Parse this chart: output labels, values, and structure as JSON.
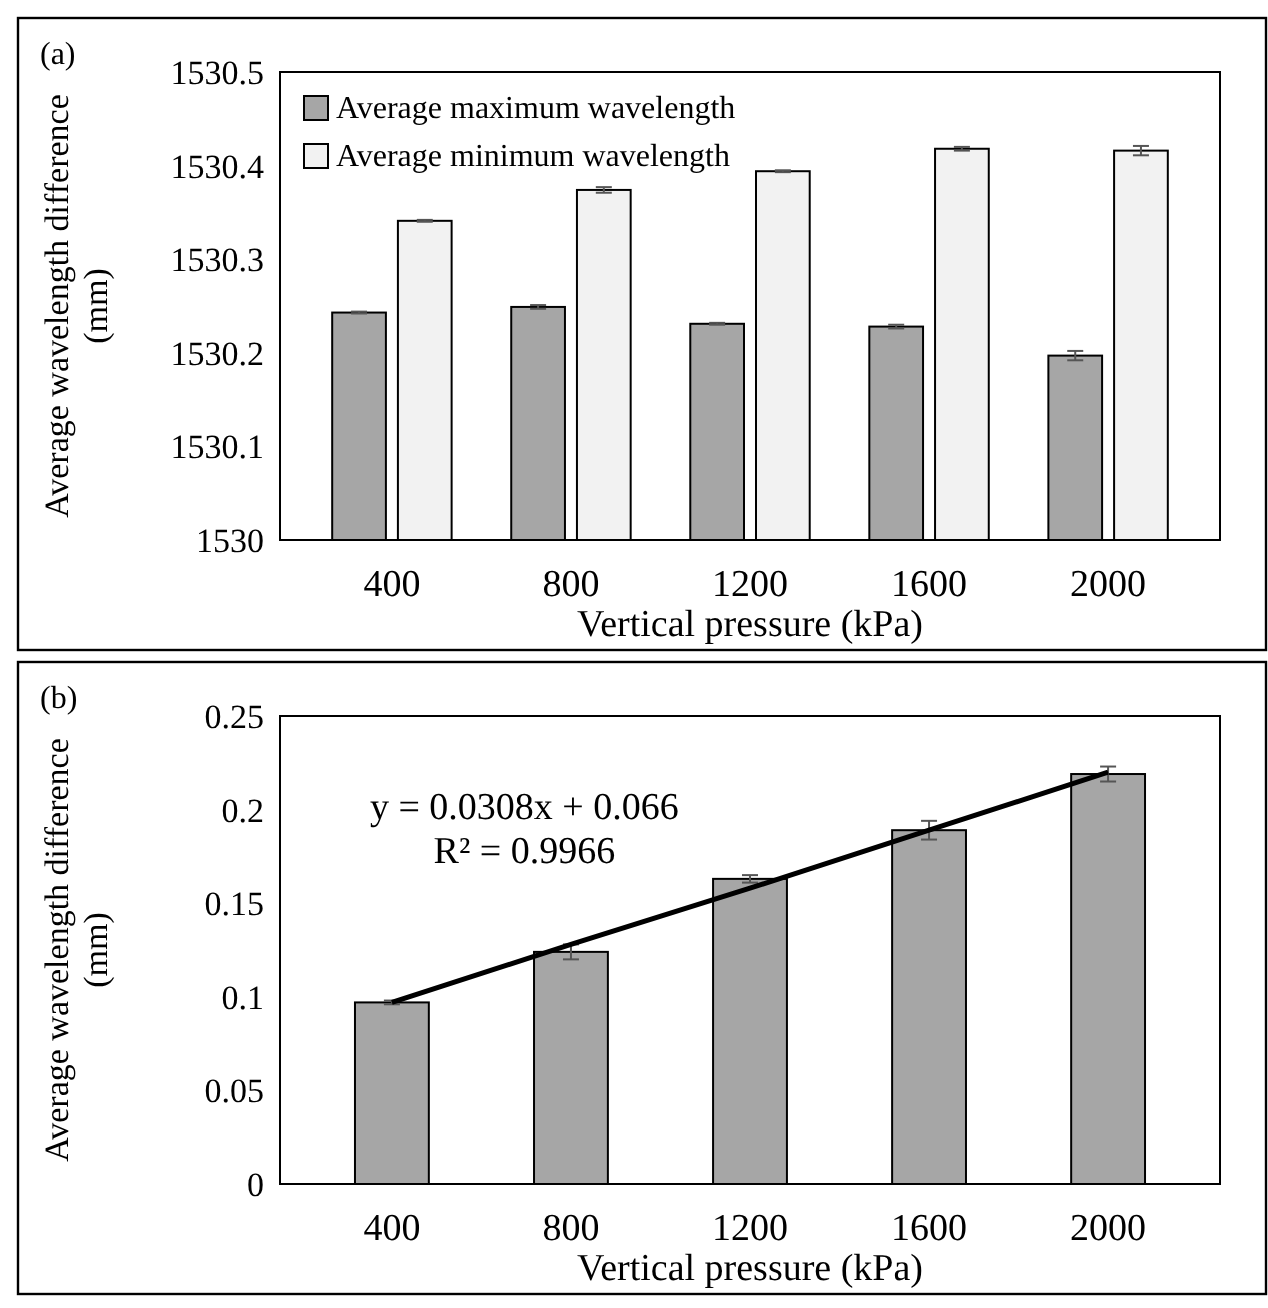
{
  "chart_data": [
    {
      "type": "bar",
      "title": "(a)",
      "xlabel": "Vertical pressure (kPa)",
      "ylabel": "Average wavelength difference (mm)",
      "categories": [
        "400",
        "800",
        "1200",
        "1600",
        "2000"
      ],
      "series": [
        {
          "name": "Average maximum wavelength",
          "color": "#a6a6a6",
          "values": [
            1530.243,
            1530.249,
            1530.231,
            1530.228,
            1530.197
          ],
          "errors": [
            0.001,
            0.002,
            0.001,
            0.002,
            0.005
          ]
        },
        {
          "name": "Average minimum wavelength",
          "color": "#f2f2f2",
          "values": [
            1530.341,
            1530.374,
            1530.394,
            1530.418,
            1530.416
          ],
          "errors": [
            0.001,
            0.003,
            0.001,
            0.002,
            0.005
          ]
        }
      ],
      "ylim": [
        1530,
        1530.5
      ],
      "yticks": [
        1530,
        1530.1,
        1530.2,
        1530.3,
        1530.4,
        1530.5
      ],
      "grid": false,
      "legend": "top left"
    },
    {
      "type": "bar",
      "title": "(b)",
      "xlabel": "Vertical pressure (kPa)",
      "ylabel": "Average wavelength difference (mm)",
      "categories": [
        "400",
        "800",
        "1200",
        "1600",
        "2000"
      ],
      "series": [
        {
          "color": "#a6a6a6",
          "values": [
            0.097,
            0.124,
            0.163,
            0.189,
            0.219
          ],
          "errors": [
            0.001,
            0.004,
            0.002,
            0.005,
            0.004
          ]
        },
        {
          "type": "line",
          "color": "#000000",
          "values": [
            0.097,
            0.128,
            0.158,
            0.189,
            0.22
          ]
        }
      ],
      "ylim": [
        0,
        0.25
      ],
      "yticks": [
        0,
        0.05,
        0.1,
        0.15,
        0.2,
        0.25
      ],
      "grid": false,
      "legend": false,
      "annotations": [
        "y = 0.0308x + 0.066",
        "R² = 0.9966"
      ]
    }
  ]
}
